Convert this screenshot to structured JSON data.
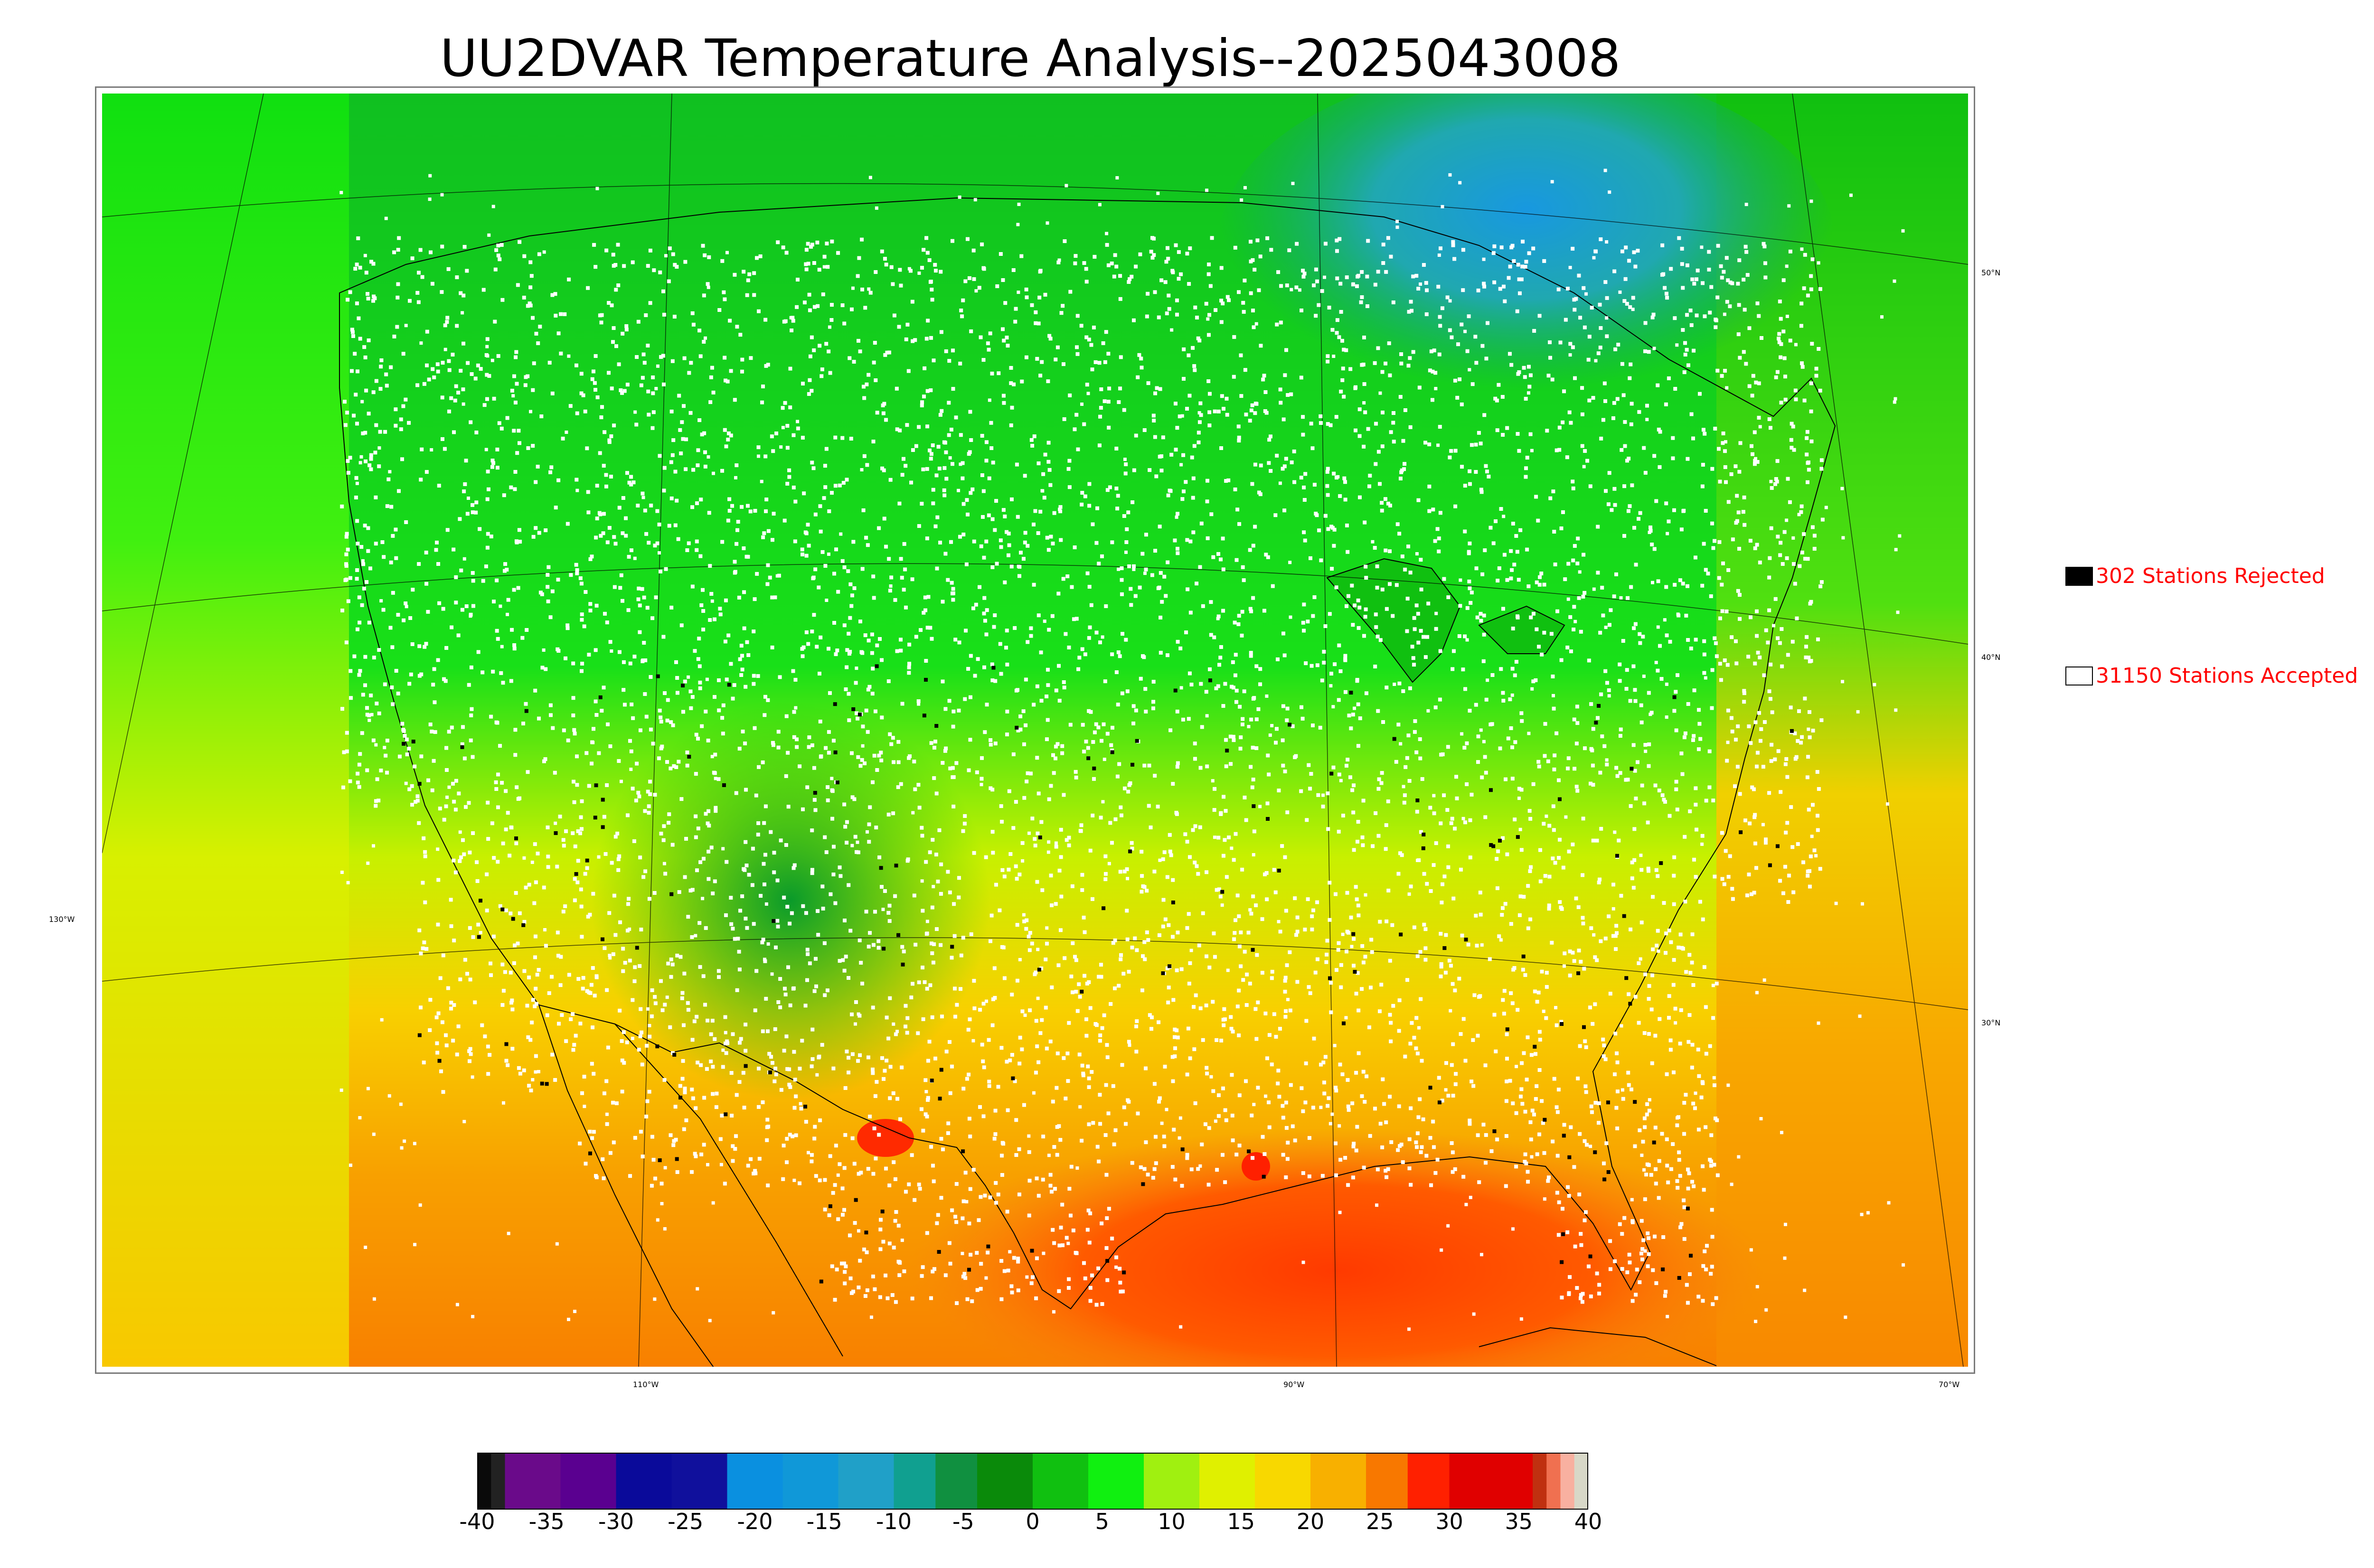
{
  "title": "UU2DVAR Temperature Analysis--2025043008",
  "graticule": {
    "lat_labels": [
      "50°N",
      "40°N",
      "30°N"
    ],
    "lon_labels": [
      "110°W",
      "90°W",
      "70°W"
    ],
    "left_lon_label": "130°W"
  },
  "legend": {
    "rejected": {
      "label": "302 Stations Rejected",
      "swatch_color": "#000000"
    },
    "accepted": {
      "label": "31150 Stations Accepted",
      "swatch_color": "#ffffff"
    },
    "text_color": "#ff0000"
  },
  "colorbar": {
    "ticks": [
      "-40",
      "-35",
      "-30",
      "-25",
      "-20",
      "-15",
      "-10",
      "-5",
      "0",
      "5",
      "10",
      "15",
      "20",
      "25",
      "30",
      "35",
      "40"
    ],
    "range": [
      -40,
      40
    ],
    "colors": [
      {
        "from": -40,
        "to": -39,
        "color": "#0a0a0a"
      },
      {
        "from": -39,
        "to": -38,
        "color": "#222222"
      },
      {
        "from": -38,
        "to": -34,
        "color": "#6a0a8a"
      },
      {
        "from": -34,
        "to": -30,
        "color": "#5a0090"
      },
      {
        "from": -30,
        "to": -26,
        "color": "#0a0a9a"
      },
      {
        "from": -26,
        "to": -22,
        "color": "#10109c"
      },
      {
        "from": -22,
        "to": -18,
        "color": "#0a90e0"
      },
      {
        "from": -18,
        "to": -14,
        "color": "#1098d8"
      },
      {
        "from": -14,
        "to": -10,
        "color": "#20a0c8"
      },
      {
        "from": -10,
        "to": -7,
        "color": "#10a090"
      },
      {
        "from": -7,
        "to": -4,
        "color": "#109040"
      },
      {
        "from": -4,
        "to": 0,
        "color": "#0a8a0a"
      },
      {
        "from": 0,
        "to": 4,
        "color": "#10c010"
      },
      {
        "from": 4,
        "to": 8,
        "color": "#10f010"
      },
      {
        "from": 8,
        "to": 12,
        "color": "#a0f010"
      },
      {
        "from": 12,
        "to": 16,
        "color": "#e0f000"
      },
      {
        "from": 16,
        "to": 20,
        "color": "#f8d800"
      },
      {
        "from": 20,
        "to": 24,
        "color": "#f8b000"
      },
      {
        "from": 24,
        "to": 27,
        "color": "#f87800"
      },
      {
        "from": 27,
        "to": 30,
        "color": "#ff2000"
      },
      {
        "from": 30,
        "to": 36,
        "color": "#e00000"
      },
      {
        "from": 36,
        "to": 37,
        "color": "#c03010"
      },
      {
        "from": 37,
        "to": 38,
        "color": "#f07050"
      },
      {
        "from": 38,
        "to": 39,
        "color": "#f8b0a0"
      },
      {
        "from": 39,
        "to": 40,
        "color": "#d8d8c8"
      }
    ]
  },
  "colors": {
    "ocean_warm": "#f89010",
    "gulf_hot": "#ff4a00",
    "land_cool": "#10d010",
    "land_cold": "#0a9a3a",
    "canada_cold": "#20a0c0",
    "south_warm": "#f0d000",
    "station_accepted": "#ffffff",
    "station_rejected": "#000000",
    "boundary": "#000000"
  }
}
